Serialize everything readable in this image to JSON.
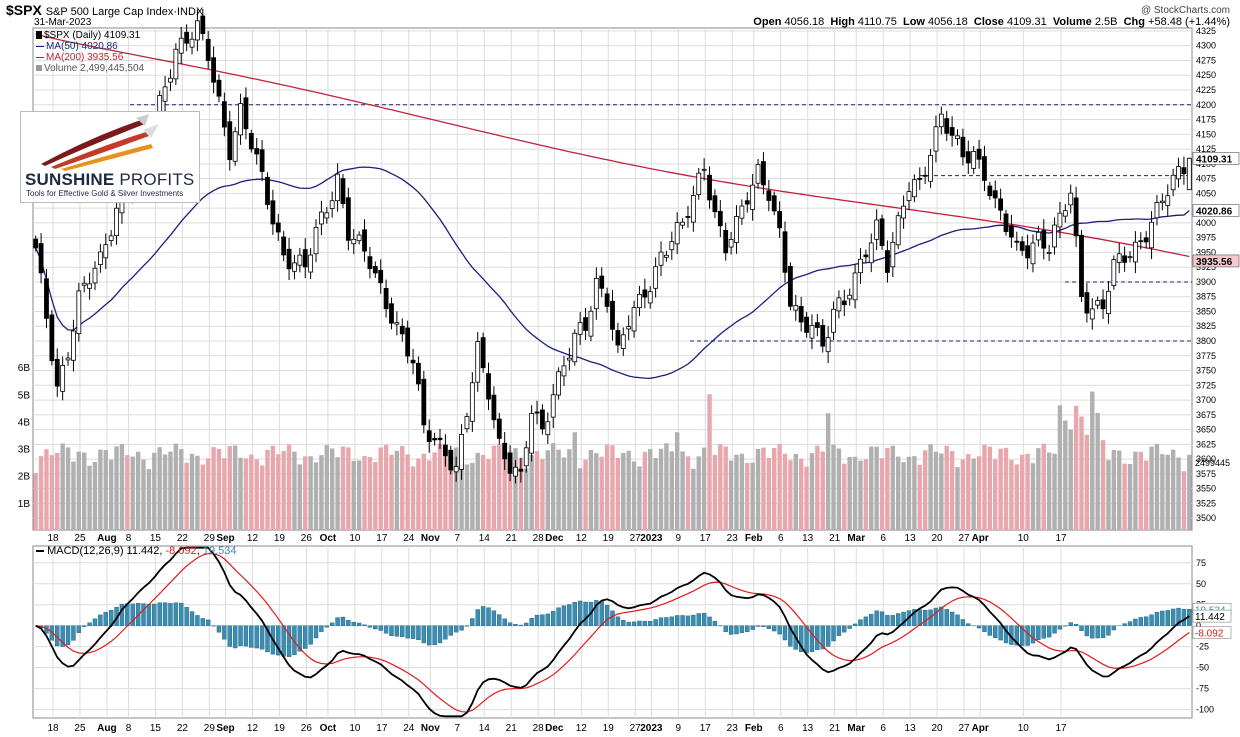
{
  "header": {
    "symbol": "$SPX",
    "name": "S&P 500 Large Cap Index",
    "exchange": "INDX",
    "date": "31-Mar-2023",
    "watermark": "@ StockCharts.com",
    "open_label": "Open",
    "open": "4056.18",
    "high_label": "High",
    "high": "4110.75",
    "low_label": "Low",
    "low": "4056.18",
    "close_label": "Close",
    "close": "4109.31",
    "volume_label": "Volume",
    "volume": "2.5B",
    "chg_label": "Chg",
    "chg": "+58.48 (+1.44%)"
  },
  "legend": {
    "price": "$SPX (Daily) 4109.31",
    "ma50": "MA(50) 4020.86",
    "ma200": "MA(200) 3935.56",
    "volume": "Volume 2,499,445,504",
    "macd_prefix": "MACD(12,26,9)",
    "macd_value": "11.442",
    "signal_value": "-8.092",
    "hist_value": "19.534"
  },
  "logo": {
    "brand_a": "SUNSHINE",
    "brand_b": "PROFITS",
    "tagline": "Tools for Effective Gold & Silver Investments"
  },
  "colors": {
    "ma50": "#1b1f7a",
    "ma200": "#c2223a",
    "volume_up": "#b0b0b0",
    "volume_down": "#e8a7ad",
    "macd": "#000000",
    "signal": "#e01a1a",
    "histogram": "#3a8db3",
    "hline": "#1b1f7a",
    "grid": "#dcdcdc"
  },
  "chart_data": [
    {
      "type": "candlestick",
      "title": "$SPX S&P 500 Large Cap Index",
      "y_ticks": [
        3500,
        3525,
        3550,
        3575,
        3600,
        3625,
        3650,
        3675,
        3700,
        3725,
        3750,
        3775,
        3800,
        3825,
        3850,
        3875,
        3900,
        3925,
        3950,
        3975,
        4000,
        4025,
        4050,
        4075,
        4100,
        4125,
        4150,
        4175,
        4200,
        4225,
        4250,
        4275,
        4300,
        4325
      ],
      "ylim": [
        3480,
        4330
      ],
      "x_tick_labels": [
        "18",
        "25",
        "Aug",
        "8",
        "15",
        "22",
        "29",
        "Sep",
        "12",
        "19",
        "26",
        "Oct",
        "10",
        "17",
        "24",
        "Nov",
        "7",
        "14",
        "21",
        "28",
        "Dec",
        "12",
        "19",
        "27",
        "2023",
        "9",
        "17",
        "23",
        "Feb",
        "6",
        "13",
        "21",
        "Mar",
        "6",
        "13",
        "20",
        "27",
        "Apr",
        "10",
        "17"
      ],
      "x_tick_bold": [
        "Aug",
        "Sep",
        "Oct",
        "Nov",
        "Dec",
        "2023",
        "Feb",
        "Mar",
        "Apr"
      ],
      "horizontal_levels": [
        4200,
        4080,
        3900,
        3800
      ],
      "anchors": [
        [
          0,
          3950
        ],
        [
          4,
          3720
        ],
        [
          6,
          3790
        ],
        [
          8,
          3875
        ],
        [
          12,
          3930
        ],
        [
          16,
          4060
        ],
        [
          20,
          4100
        ],
        [
          26,
          4300
        ],
        [
          30,
          4325
        ],
        [
          32,
          4280
        ],
        [
          36,
          4130
        ],
        [
          38,
          4190
        ],
        [
          42,
          4070
        ],
        [
          46,
          3950
        ],
        [
          50,
          3920
        ],
        [
          52,
          3980
        ],
        [
          56,
          4080
        ],
        [
          58,
          3985
        ],
        [
          62,
          3930
        ],
        [
          66,
          3850
        ],
        [
          70,
          3760
        ],
        [
          72,
          3650
        ],
        [
          76,
          3620
        ],
        [
          78,
          3580
        ],
        [
          80,
          3675
        ],
        [
          82,
          3780
        ],
        [
          84,
          3720
        ],
        [
          86,
          3630
        ],
        [
          88,
          3590
        ],
        [
          90,
          3560
        ],
        [
          92,
          3680
        ],
        [
          94,
          3650
        ],
        [
          96,
          3720
        ],
        [
          98,
          3760
        ],
        [
          100,
          3800
        ],
        [
          102,
          3820
        ],
        [
          104,
          3900
        ],
        [
          106,
          3880
        ],
        [
          108,
          3780
        ],
        [
          110,
          3830
        ],
        [
          112,
          3860
        ],
        [
          114,
          3900
        ],
        [
          116,
          3950
        ],
        [
          118,
          3975
        ],
        [
          120,
          3990
        ],
        [
          122,
          4040
        ],
        [
          124,
          4100
        ],
        [
          126,
          4020
        ],
        [
          128,
          3960
        ],
        [
          130,
          3990
        ],
        [
          132,
          4040
        ],
        [
          134,
          4090
        ],
        [
          136,
          4060
        ],
        [
          138,
          3980
        ],
        [
          140,
          3860
        ],
        [
          142,
          3820
        ],
        [
          144,
          3835
        ],
        [
          146,
          3800
        ],
        [
          148,
          3850
        ],
        [
          150,
          3860
        ],
        [
          152,
          3900
        ],
        [
          154,
          3960
        ],
        [
          156,
          4000
        ],
        [
          158,
          3930
        ],
        [
          160,
          3990
        ],
        [
          162,
          4060
        ],
        [
          164,
          4070
        ],
        [
          166,
          4130
        ],
        [
          168,
          4180
        ],
        [
          170,
          4140
        ],
        [
          172,
          4110
        ],
        [
          174,
          4120
        ],
        [
          176,
          4090
        ],
        [
          178,
          4030
        ],
        [
          180,
          3990
        ],
        [
          182,
          3950
        ],
        [
          184,
          3960
        ],
        [
          186,
          3980
        ],
        [
          188,
          3960
        ],
        [
          190,
          4000
        ],
        [
          192,
          4050
        ],
        [
          194,
          3880
        ],
        [
          196,
          3860
        ],
        [
          198,
          3860
        ],
        [
          200,
          3920
        ],
        [
          202,
          3940
        ],
        [
          204,
          3960
        ],
        [
          206,
          3990
        ],
        [
          208,
          4020
        ],
        [
          210,
          4050
        ],
        [
          212,
          4080
        ],
        [
          214,
          4109
        ]
      ],
      "volume_ylim_billions": [
        0,
        7
      ],
      "volume_ticks_billions": [
        1,
        2,
        3,
        4,
        5,
        6
      ],
      "volume_ticks_labels": [
        "1B",
        "2B",
        "3B",
        "4B",
        "5B",
        "6B"
      ]
    },
    {
      "type": "line",
      "title": "MACD(12,26,9)",
      "y_ticks": [
        75,
        50,
        25,
        0,
        -25,
        -50,
        -75,
        -100
      ],
      "ylim": [
        -110,
        95
      ],
      "series": [
        {
          "name": "MACD",
          "values": "computed"
        },
        {
          "name": "Signal",
          "values": "computed"
        },
        {
          "name": "Histogram",
          "values": "computed"
        }
      ],
      "last": {
        "macd": 11.442,
        "signal": -8.092,
        "histogram": 19.534
      }
    }
  ]
}
